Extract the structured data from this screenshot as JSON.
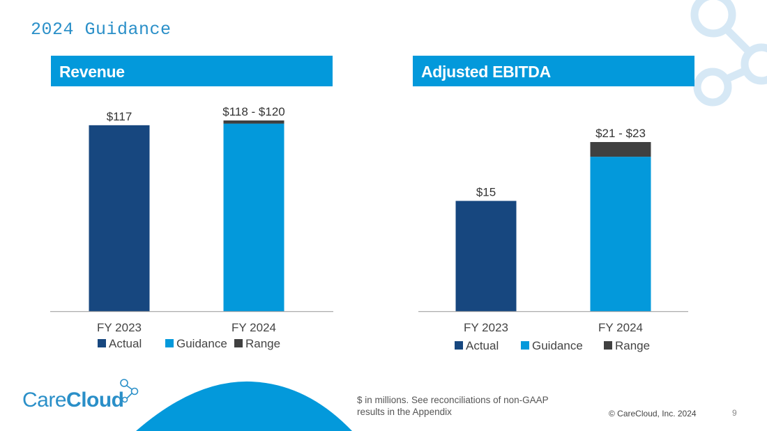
{
  "page": {
    "title": "2024 Guidance",
    "footnote": "$ in millions. See reconciliations of non-GAAP results in the Appendix",
    "copyright": "© CareCloud, Inc. 2024",
    "page_number": "9",
    "logo": {
      "part1": "Care",
      "part2": "Cloud"
    }
  },
  "colors": {
    "actual": "#17477f",
    "guidance": "#0399db",
    "range": "#404040",
    "header": "#0399db",
    "deco": "#d6e8f5"
  },
  "chart_data": [
    {
      "type": "bar",
      "title": "Revenue",
      "categories": [
        "FY 2023",
        "FY 2024"
      ],
      "stacked": true,
      "series": [
        {
          "name": "Actual",
          "values": [
            117,
            0
          ]
        },
        {
          "name": "Guidance",
          "values": [
            0,
            118
          ]
        },
        {
          "name": "Range",
          "values": [
            0,
            2
          ]
        }
      ],
      "data_labels": [
        "$117",
        "$118 - $120"
      ],
      "ylim": [
        0,
        120
      ],
      "legend": [
        "Actual",
        "Guidance",
        "Range"
      ],
      "legend_position": "bottom",
      "grid": false,
      "xlabel": "",
      "ylabel": ""
    },
    {
      "type": "bar",
      "title": "Adjusted EBITDA",
      "categories": [
        "FY 2023",
        "FY 2024"
      ],
      "stacked": true,
      "series": [
        {
          "name": "Actual",
          "values": [
            15,
            0
          ]
        },
        {
          "name": "Guidance",
          "values": [
            0,
            21
          ]
        },
        {
          "name": "Range",
          "values": [
            0,
            2
          ]
        }
      ],
      "data_labels": [
        "$15",
        "$21 - $23"
      ],
      "ylim": [
        0,
        23
      ],
      "legend": [
        "Actual",
        "Guidance",
        "Range"
      ],
      "legend_position": "bottom",
      "grid": false,
      "xlabel": "",
      "ylabel": ""
    }
  ]
}
